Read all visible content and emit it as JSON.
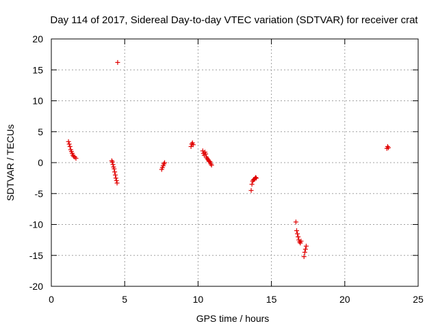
{
  "chart_data": {
    "type": "scatter",
    "title": "Day 114 of 2017, Sidereal Day-to-day VTEC variation (SDTVAR) for receiver crat",
    "xlabel": "GPS time / hours",
    "ylabel": "SDTVAR / TECUs",
    "xlim": [
      0,
      25
    ],
    "ylim": [
      -20,
      20
    ],
    "xticks": [
      0,
      5,
      10,
      15,
      20,
      25
    ],
    "yticks": [
      -20,
      -15,
      -10,
      -5,
      0,
      5,
      10,
      15,
      20
    ],
    "grid": true,
    "marker": "+",
    "marker_color": "#e00000",
    "series": [
      {
        "name": "SDTVAR",
        "points": [
          [
            1.17,
            3.4
          ],
          [
            1.22,
            3.0
          ],
          [
            1.27,
            2.6
          ],
          [
            1.32,
            2.1
          ],
          [
            1.37,
            1.8
          ],
          [
            1.42,
            1.5
          ],
          [
            1.47,
            1.2
          ],
          [
            1.52,
            1.0
          ],
          [
            1.6,
            0.9
          ],
          [
            1.68,
            0.7
          ],
          [
            4.12,
            0.3
          ],
          [
            4.16,
            0.1
          ],
          [
            4.2,
            -0.3
          ],
          [
            4.24,
            -0.7
          ],
          [
            4.28,
            -1.0
          ],
          [
            4.32,
            -1.5
          ],
          [
            4.36,
            -2.0
          ],
          [
            4.4,
            -2.5
          ],
          [
            4.44,
            -2.9
          ],
          [
            4.48,
            -3.3
          ],
          [
            4.52,
            16.2
          ],
          [
            7.52,
            -1.1
          ],
          [
            7.57,
            -0.8
          ],
          [
            7.62,
            -0.5
          ],
          [
            7.67,
            -0.2
          ],
          [
            7.72,
            0.0
          ],
          [
            9.52,
            2.6
          ],
          [
            9.57,
            3.0
          ],
          [
            9.62,
            3.2
          ],
          [
            9.67,
            2.9
          ],
          [
            10.32,
            1.9
          ],
          [
            10.37,
            1.5
          ],
          [
            10.42,
            1.2
          ],
          [
            10.47,
            1.7
          ],
          [
            10.52,
            1.4
          ],
          [
            10.57,
            0.9
          ],
          [
            10.62,
            0.7
          ],
          [
            10.67,
            0.5
          ],
          [
            10.72,
            0.3
          ],
          [
            10.77,
            0.2
          ],
          [
            10.82,
            0.1
          ],
          [
            10.87,
            -0.2
          ],
          [
            10.92,
            -0.4
          ],
          [
            13.62,
            -4.5
          ],
          [
            13.67,
            -3.5
          ],
          [
            13.72,
            -3.0
          ],
          [
            13.77,
            -2.8
          ],
          [
            13.82,
            -2.7
          ],
          [
            13.87,
            -2.6
          ],
          [
            13.92,
            -2.4
          ],
          [
            13.97,
            -2.5
          ],
          [
            16.67,
            -9.6
          ],
          [
            16.72,
            -11.0
          ],
          [
            16.77,
            -11.5
          ],
          [
            16.82,
            -12.0
          ],
          [
            16.87,
            -12.5
          ],
          [
            16.92,
            -12.8
          ],
          [
            16.97,
            -13.0
          ],
          [
            17.02,
            -12.7
          ],
          [
            17.22,
            -15.2
          ],
          [
            17.27,
            -14.5
          ],
          [
            17.32,
            -14.0
          ],
          [
            17.37,
            -13.5
          ],
          [
            22.87,
            2.3
          ],
          [
            22.92,
            2.6
          ],
          [
            22.97,
            2.4
          ]
        ]
      }
    ]
  }
}
